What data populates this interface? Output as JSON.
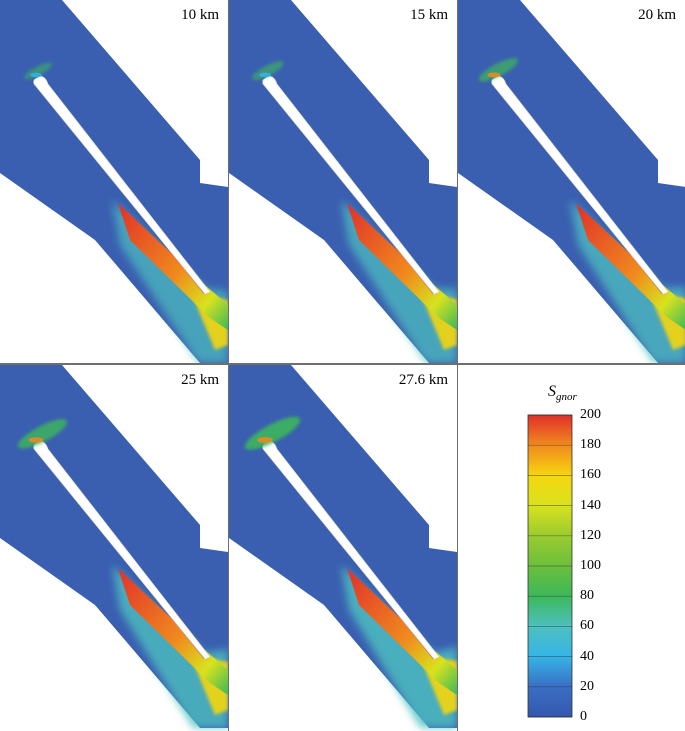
{
  "panels": [
    {
      "label": "10 km",
      "wake_scale": 0.95,
      "tip_glow": 0.25,
      "wake_spread": 0.45
    },
    {
      "label": "15 km",
      "wake_scale": 1.0,
      "tip_glow": 0.35,
      "wake_spread": 0.55
    },
    {
      "label": "20 km",
      "wake_scale": 1.05,
      "tip_glow": 0.55,
      "wake_spread": 0.65
    },
    {
      "label": "25 km",
      "wake_scale": 1.1,
      "tip_glow": 0.8,
      "wake_spread": 0.8
    },
    {
      "label": "27.6 km",
      "wake_scale": 1.12,
      "tip_glow": 0.95,
      "wake_spread": 0.9
    }
  ],
  "legend": {
    "variable": "S",
    "subscript": "gnor",
    "ticks": [
      "200",
      "180",
      "160",
      "140",
      "120",
      "100",
      "80",
      "60",
      "40",
      "20",
      "0"
    ],
    "min": 0,
    "max": 200
  },
  "colors": {
    "background_field": "#3a5fb0",
    "c0": "#3457ae",
    "c20": "#3a6fc4",
    "c40": "#36b4e6",
    "c60": "#4ec0c0",
    "c80": "#3cb85a",
    "c100": "#6cbf3c",
    "c120": "#9acb2e",
    "c140": "#d8e21e",
    "c160": "#f5d60f",
    "c180": "#f08a1e",
    "c200": "#e0302a"
  }
}
